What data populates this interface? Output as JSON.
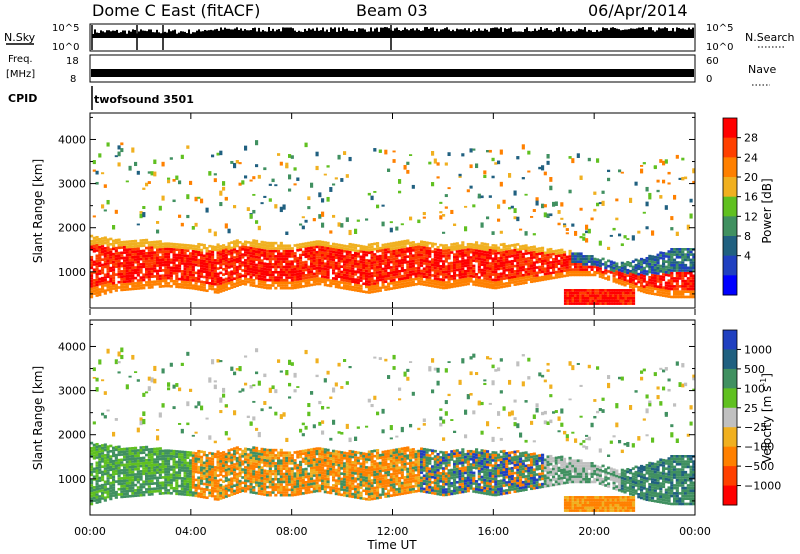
{
  "header": {
    "title": "Dome C East (fitACF)",
    "beam": "Beam 03",
    "date": "06/Apr/2014"
  },
  "panels": {
    "nsky_label": "N.Sky",
    "nsky_top": "10^5",
    "nsky_bottom": "10^0",
    "nsearch_label": "N.Search",
    "nsearch_top": "10^5",
    "nsearch_bottom": "10^0",
    "freq_label": "Freq.",
    "freq_unit": "[MHz]",
    "freq_top": "18",
    "freq_bottom": "8",
    "nave_label": "Nave",
    "nave_top": "60",
    "nave_bottom": "0",
    "cpid_label": "CPID",
    "cpid_value": "twofsound 3501"
  },
  "chart_data": [
    {
      "type": "heatmap",
      "ylabel": "Slant Range [km]",
      "ylim": [
        180,
        4600
      ],
      "yticks": [
        1000,
        2000,
        3000,
        4000
      ],
      "colorbar": {
        "label": "Power [dB]",
        "ticks": [
          "28",
          "24",
          "20",
          "16",
          "12",
          "8",
          "4"
        ],
        "colors": [
          "#ff0000",
          "#ff4000",
          "#ff8000",
          "#f0b020",
          "#60c020",
          "#409060",
          "#206080",
          "#2040c0",
          "#0000ff"
        ]
      },
      "series": [
        {
          "x": [
            0,
            1,
            2,
            3,
            4,
            5,
            6,
            7,
            8,
            9,
            10,
            11,
            12,
            13,
            14,
            15,
            16,
            17,
            18,
            19,
            20,
            21,
            22,
            23,
            24
          ],
          "y_low": [
            400,
            550,
            600,
            650,
            600,
            500,
            700,
            600,
            600,
            700,
            600,
            500,
            600,
            700,
            600,
            700,
            600,
            700,
            800,
            900,
            900,
            700,
            500,
            400,
            400
          ],
          "y_high": [
            1800,
            1700,
            1700,
            1650,
            1600,
            1600,
            1700,
            1650,
            1600,
            1700,
            1600,
            1600,
            1650,
            1700,
            1600,
            1650,
            1600,
            1600,
            1500,
            1450,
            1300,
            1200,
            1300,
            1500,
            1500
          ]
        }
      ]
    },
    {
      "type": "heatmap",
      "ylabel": "Slant Range [km]",
      "xlabel": "Time UT",
      "ylim": [
        180,
        4600
      ],
      "yticks": [
        1000,
        2000,
        3000,
        4000
      ],
      "xticks": [
        "00:00",
        "04:00",
        "08:00",
        "12:00",
        "16:00",
        "20:00",
        "00:00"
      ],
      "colorbar": {
        "label": "Velocity [m s",
        "label_sup": "-1",
        "label_end": "]",
        "ticks": [
          "1000",
          "500",
          "100",
          "25",
          "−25",
          "−100",
          "−500",
          "−1000"
        ],
        "colors": [
          "#2040c0",
          "#206080",
          "#409060",
          "#60c020",
          "#c0c0c0",
          "#f0b020",
          "#ff8000",
          "#ff4000",
          "#ff0000"
        ]
      }
    }
  ]
}
